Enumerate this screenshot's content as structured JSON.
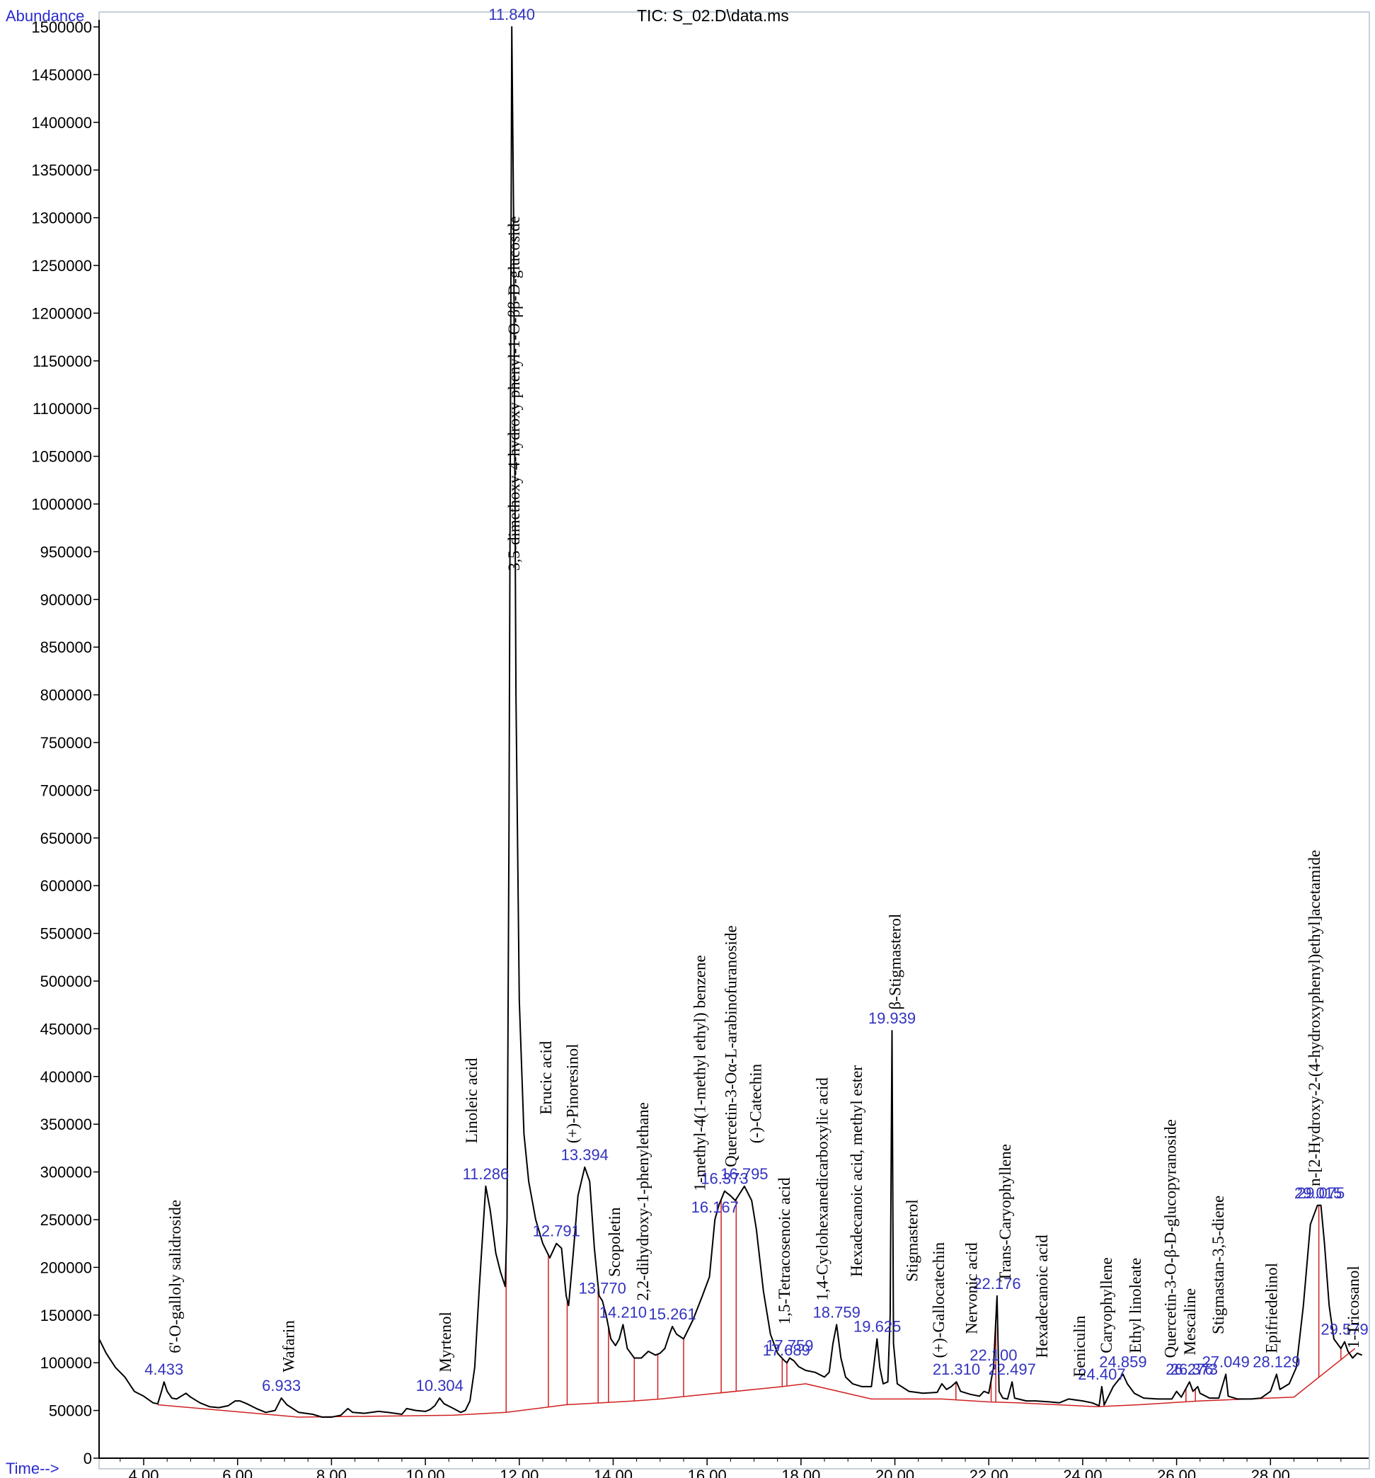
{
  "chart_data": {
    "type": "line",
    "title": "TIC: S_02.D\\data.ms",
    "ylabel": "Abundance",
    "xlabel": "Time-->",
    "xlim": [
      3.05,
      30.0
    ],
    "ylim": [
      0,
      1500000
    ],
    "xticks": [
      "4.00",
      "6.00",
      "8.00",
      "10.00",
      "12.00",
      "14.00",
      "16.00",
      "18.00",
      "20.00",
      "22.00",
      "24.00",
      "26.00",
      "28.00"
    ],
    "xtick_values": [
      4,
      6,
      8,
      10,
      12,
      14,
      16,
      18,
      20,
      22,
      24,
      26,
      28
    ],
    "yticks": [
      "0",
      "50000",
      "100000",
      "150000",
      "200000",
      "250000",
      "300000",
      "350000",
      "400000",
      "450000",
      "500000",
      "550000",
      "600000",
      "650000",
      "700000",
      "750000",
      "800000",
      "850000",
      "900000",
      "950000",
      "1000000",
      "1050000",
      "1100000",
      "1150000",
      "1200000",
      "1250000",
      "1300000",
      "1350000",
      "1400000",
      "1450000",
      "1500000"
    ],
    "ytick_values": [
      0,
      50000,
      100000,
      150000,
      200000,
      250000,
      300000,
      350000,
      400000,
      450000,
      500000,
      550000,
      600000,
      650000,
      700000,
      750000,
      800000,
      850000,
      900000,
      950000,
      1000000,
      1050000,
      1100000,
      1150000,
      1200000,
      1250000,
      1300000,
      1350000,
      1400000,
      1450000,
      1500000
    ],
    "series": [
      {
        "name": "TIC",
        "color": "#000000",
        "points": [
          [
            3.05,
            125000
          ],
          [
            3.2,
            110000
          ],
          [
            3.4,
            95000
          ],
          [
            3.6,
            85000
          ],
          [
            3.8,
            70000
          ],
          [
            4.0,
            65000
          ],
          [
            4.2,
            58000
          ],
          [
            4.3,
            57000
          ],
          [
            4.38,
            70000
          ],
          [
            4.433,
            80000
          ],
          [
            4.5,
            70000
          ],
          [
            4.6,
            63000
          ],
          [
            4.7,
            62000
          ],
          [
            4.9,
            68000
          ],
          [
            5.0,
            64000
          ],
          [
            5.2,
            58000
          ],
          [
            5.4,
            54000
          ],
          [
            5.6,
            53000
          ],
          [
            5.8,
            55000
          ],
          [
            5.95,
            60000
          ],
          [
            6.05,
            60000
          ],
          [
            6.2,
            57000
          ],
          [
            6.4,
            52000
          ],
          [
            6.6,
            48000
          ],
          [
            6.8,
            50000
          ],
          [
            6.933,
            63000
          ],
          [
            7.05,
            56000
          ],
          [
            7.3,
            48000
          ],
          [
            7.6,
            46000
          ],
          [
            7.8,
            43000
          ],
          [
            8.0,
            43000
          ],
          [
            8.2,
            45000
          ],
          [
            8.35,
            52000
          ],
          [
            8.45,
            48000
          ],
          [
            8.7,
            47000
          ],
          [
            9.0,
            49000
          ],
          [
            9.2,
            48000
          ],
          [
            9.5,
            46000
          ],
          [
            9.6,
            52000
          ],
          [
            9.8,
            50000
          ],
          [
            10.0,
            49000
          ],
          [
            10.1,
            51000
          ],
          [
            10.2,
            55000
          ],
          [
            10.304,
            63000
          ],
          [
            10.4,
            57000
          ],
          [
            10.6,
            52000
          ],
          [
            10.75,
            48000
          ],
          [
            10.85,
            50000
          ],
          [
            10.95,
            60000
          ],
          [
            11.05,
            95000
          ],
          [
            11.15,
            180000
          ],
          [
            11.286,
            285000
          ],
          [
            11.38,
            260000
          ],
          [
            11.5,
            215000
          ],
          [
            11.6,
            195000
          ],
          [
            11.7,
            180000
          ],
          [
            11.74,
            250000
          ],
          [
            11.78,
            650000
          ],
          [
            11.82,
            1200000
          ],
          [
            11.84,
            1500000
          ],
          [
            11.88,
            1300000
          ],
          [
            11.93,
            800000
          ],
          [
            12.0,
            480000
          ],
          [
            12.1,
            340000
          ],
          [
            12.2,
            290000
          ],
          [
            12.35,
            250000
          ],
          [
            12.5,
            225000
          ],
          [
            12.65,
            210000
          ],
          [
            12.791,
            225000
          ],
          [
            12.9,
            220000
          ],
          [
            13.0,
            170000
          ],
          [
            13.05,
            160000
          ],
          [
            13.15,
            215000
          ],
          [
            13.25,
            275000
          ],
          [
            13.394,
            305000
          ],
          [
            13.5,
            290000
          ],
          [
            13.6,
            220000
          ],
          [
            13.7,
            170000
          ],
          [
            13.77,
            165000
          ],
          [
            13.85,
            150000
          ],
          [
            13.95,
            125000
          ],
          [
            14.05,
            118000
          ],
          [
            14.13,
            125000
          ],
          [
            14.21,
            140000
          ],
          [
            14.3,
            115000
          ],
          [
            14.45,
            105000
          ],
          [
            14.6,
            105000
          ],
          [
            14.75,
            112000
          ],
          [
            14.9,
            108000
          ],
          [
            15.0,
            110000
          ],
          [
            15.1,
            115000
          ],
          [
            15.2,
            130000
          ],
          [
            15.261,
            138000
          ],
          [
            15.35,
            130000
          ],
          [
            15.5,
            125000
          ],
          [
            15.7,
            145000
          ],
          [
            15.9,
            170000
          ],
          [
            16.05,
            190000
          ],
          [
            16.167,
            250000
          ],
          [
            16.25,
            265000
          ],
          [
            16.373,
            280000
          ],
          [
            16.5,
            275000
          ],
          [
            16.6,
            270000
          ],
          [
            16.795,
            285000
          ],
          [
            16.95,
            270000
          ],
          [
            17.05,
            240000
          ],
          [
            17.2,
            175000
          ],
          [
            17.35,
            130000
          ],
          [
            17.5,
            110000
          ],
          [
            17.65,
            102000
          ],
          [
            17.7,
            100000
          ],
          [
            17.759,
            105000
          ],
          [
            17.85,
            102000
          ],
          [
            17.95,
            96000
          ],
          [
            18.1,
            92000
          ],
          [
            18.3,
            90000
          ],
          [
            18.5,
            85000
          ],
          [
            18.6,
            90000
          ],
          [
            18.68,
            120000
          ],
          [
            18.759,
            140000
          ],
          [
            18.85,
            105000
          ],
          [
            18.95,
            85000
          ],
          [
            19.1,
            78000
          ],
          [
            19.3,
            75000
          ],
          [
            19.5,
            75000
          ],
          [
            19.62,
            125000
          ],
          [
            19.68,
            95000
          ],
          [
            19.75,
            78000
          ],
          [
            19.85,
            80000
          ],
          [
            19.9,
            150000
          ],
          [
            19.939,
            448000
          ],
          [
            19.97,
            120000
          ],
          [
            20.05,
            78000
          ],
          [
            20.3,
            70000
          ],
          [
            20.6,
            68000
          ],
          [
            20.9,
            69000
          ],
          [
            21.0,
            78000
          ],
          [
            21.1,
            72000
          ],
          [
            21.2,
            75000
          ],
          [
            21.31,
            80000
          ],
          [
            21.4,
            70000
          ],
          [
            21.6,
            67000
          ],
          [
            21.8,
            65000
          ],
          [
            21.9,
            70000
          ],
          [
            22.0,
            68000
          ],
          [
            22.1,
            95000
          ],
          [
            22.176,
            170000
          ],
          [
            22.22,
            70000
          ],
          [
            22.3,
            63000
          ],
          [
            22.4,
            62000
          ],
          [
            22.497,
            80000
          ],
          [
            22.55,
            63000
          ],
          [
            22.8,
            60000
          ],
          [
            23.0,
            60000
          ],
          [
            23.3,
            59000
          ],
          [
            23.5,
            58000
          ],
          [
            23.7,
            62000
          ],
          [
            24.0,
            60000
          ],
          [
            24.2,
            58000
          ],
          [
            24.35,
            55000
          ],
          [
            24.407,
            75000
          ],
          [
            24.46,
            56000
          ],
          [
            24.55,
            65000
          ],
          [
            24.65,
            75000
          ],
          [
            24.859,
            88000
          ],
          [
            24.95,
            78000
          ],
          [
            25.1,
            68000
          ],
          [
            25.3,
            63000
          ],
          [
            25.6,
            62000
          ],
          [
            25.9,
            62000
          ],
          [
            26.0,
            70000
          ],
          [
            26.1,
            64000
          ],
          [
            26.276,
            80000
          ],
          [
            26.35,
            70000
          ],
          [
            26.45,
            75000
          ],
          [
            26.5,
            68000
          ],
          [
            26.7,
            63000
          ],
          [
            26.9,
            63000
          ],
          [
            27.049,
            88000
          ],
          [
            27.1,
            65000
          ],
          [
            27.3,
            62000
          ],
          [
            27.6,
            62000
          ],
          [
            27.8,
            63000
          ],
          [
            28.0,
            70000
          ],
          [
            28.129,
            88000
          ],
          [
            28.2,
            72000
          ],
          [
            28.4,
            78000
          ],
          [
            28.55,
            95000
          ],
          [
            28.7,
            160000
          ],
          [
            28.85,
            245000
          ],
          [
            29.0,
            265000
          ],
          [
            29.075,
            265000
          ],
          [
            29.15,
            225000
          ],
          [
            29.25,
            160000
          ],
          [
            29.35,
            125000
          ],
          [
            29.5,
            115000
          ],
          [
            29.579,
            122000
          ],
          [
            29.65,
            112000
          ],
          [
            29.75,
            105000
          ],
          [
            29.85,
            110000
          ],
          [
            29.95,
            108000
          ]
        ]
      }
    ],
    "baselines": [
      [
        [
          4.3,
          56000
        ],
        [
          7.3,
          43000
        ],
        [
          10.6,
          45000
        ],
        [
          11.72,
          48000
        ],
        [
          13.0,
          56000
        ],
        [
          13.75,
          58000
        ],
        [
          14.45,
          60000
        ],
        [
          15.0,
          62000
        ],
        [
          16.2,
          68000
        ],
        [
          17.6,
          75000
        ],
        [
          18.1,
          78000
        ],
        [
          19.5,
          62000
        ],
        [
          21.0,
          62000
        ],
        [
          22.0,
          59000
        ],
        [
          22.6,
          58000
        ],
        [
          24.3,
          54000
        ],
        [
          25.2,
          56000
        ],
        [
          26.5,
          60000
        ],
        [
          28.5,
          64000
        ],
        [
          29.8,
          115000
        ]
      ]
    ],
    "peaks": [
      {
        "rt": "4.433",
        "x": 4.433,
        "y": 80000,
        "label": "6'-O-galloly salidroside"
      },
      {
        "rt": "6.933",
        "x": 6.933,
        "y": 63000,
        "label": "Wafarin"
      },
      {
        "rt": "10.304",
        "x": 10.304,
        "y": 63000,
        "label": "Myrtenol"
      },
      {
        "rt": "11.286",
        "x": 11.286,
        "y": 285000,
        "label": "Linoleic acid"
      },
      {
        "rt": "11.840",
        "x": 11.84,
        "y": 1500000,
        "label": "3,5-dimethoxy-4-hydroxy phenyl-1-O-ββ-D-glucoside"
      },
      {
        "rt": "12.791",
        "x": 12.791,
        "y": 225000,
        "label": "Erucic acid"
      },
      {
        "rt": "13.394",
        "x": 13.394,
        "y": 305000,
        "label": "(+)-Pinoresinol"
      },
      {
        "rt": "13.770",
        "x": 13.77,
        "y": 165000,
        "label": "Scopoletin"
      },
      {
        "rt": "14.210",
        "x": 14.21,
        "y": 140000,
        "label": "2,2-dihydroxy-1-phenylethane"
      },
      {
        "rt": "15.261",
        "x": 15.261,
        "y": 138000,
        "label": "1-methyl-4(1-methyl ethyl) benzene"
      },
      {
        "rt": "16.167",
        "x": 16.167,
        "y": 250000,
        "label": "Quercetin-3-Oα-L-arabinofuranoside"
      },
      {
        "rt": "16.373",
        "x": 16.373,
        "y": 280000,
        "label": ""
      },
      {
        "rt": "16.795",
        "x": 16.795,
        "y": 285000,
        "label": "(-)-Catechin"
      },
      {
        "rt": "17.759",
        "x": 17.759,
        "y": 105000,
        "label": "1,5-Tetracosenoic acid"
      },
      {
        "rt": "17.689",
        "x": 17.689,
        "y": 100000,
        "label": ""
      },
      {
        "rt": "18.759",
        "x": 18.759,
        "y": 140000,
        "label": "1,4-Cyclohexanedicarboxylic acid"
      },
      {
        "rt": "19.625",
        "x": 19.625,
        "y": 125000,
        "label": "Hexadecanoic acid, methyl ester"
      },
      {
        "rt": "19.939",
        "x": 19.939,
        "y": 448000,
        "label": "β-Stigmasterol"
      },
      {
        "rt": "",
        "x": 20.35,
        "y": 70000,
        "label": "Stigmasterol"
      },
      {
        "rt": "21.310",
        "x": 21.31,
        "y": 80000,
        "label": "(+)-Gallocatechin"
      },
      {
        "rt": "22.100",
        "x": 22.1,
        "y": 95000,
        "label": "Nervonic acid"
      },
      {
        "rt": "22.176",
        "x": 22.176,
        "y": 170000,
        "label": "Trans-Caryophyllene"
      },
      {
        "rt": "22.497",
        "x": 22.497,
        "y": 80000,
        "label": "Hexadecanoic acid"
      },
      {
        "rt": "24.407",
        "x": 24.407,
        "y": 75000,
        "label": "Feniculin"
      },
      {
        "rt": "24.407",
        "x": 24.407,
        "y": 75000,
        "label": "Caryophyllene"
      },
      {
        "rt": "24.859",
        "x": 24.859,
        "y": 88000,
        "label": "Ethyl linoleate"
      },
      {
        "rt": "26.276",
        "x": 26.276,
        "y": 80000,
        "label": "Quercetin-3-O-β-D-glucopyranoside"
      },
      {
        "rt": "26.373",
        "x": 26.373,
        "y": 80000,
        "label": "Mescaline"
      },
      {
        "rt": "27.049",
        "x": 27.049,
        "y": 88000,
        "label": "Stigmastan-3,5-diene"
      },
      {
        "rt": "28.129",
        "x": 28.129,
        "y": 88000,
        "label": "Epifriedelinol"
      },
      {
        "rt": "29.015",
        "x": 29.015,
        "y": 265000,
        "label": "n-[2-Hydroxy-2-(4-hydroxyphenyl)ethyl]acetamide"
      },
      {
        "rt": "29.075",
        "x": 29.075,
        "y": 265000,
        "label": ""
      },
      {
        "rt": "29.579",
        "x": 29.579,
        "y": 122000,
        "label": "1-Tricosanol"
      }
    ]
  },
  "colors": {
    "axis": "#000000",
    "trace": "#000000",
    "baseline": "#d02020",
    "rt_label": "#3333c0",
    "ylabel": "#2b2bd0",
    "frame": "#c8d0d8"
  }
}
